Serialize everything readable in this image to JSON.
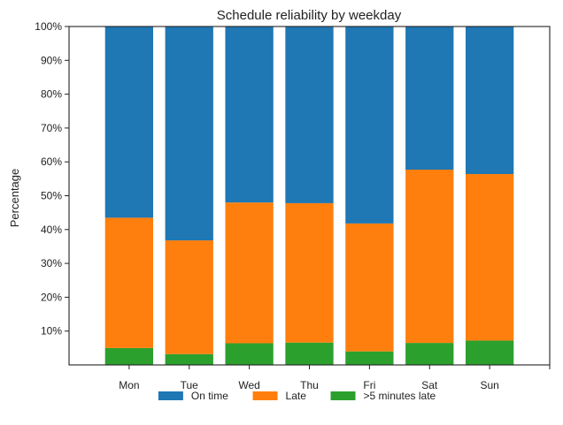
{
  "chart_data": {
    "type": "bar",
    "stacked": true,
    "title": "Schedule reliability by weekday",
    "xlabel": "",
    "ylabel": "Percentage",
    "ylim": [
      0,
      100
    ],
    "yticks": [
      "10%",
      "20%",
      "30%",
      "40%",
      "50%",
      "60%",
      "70%",
      "80%",
      "90%",
      "100%"
    ],
    "categories": [
      "Mon",
      "Tue",
      "Wed",
      "Thu",
      "Fri",
      "Sat",
      "Sun"
    ],
    "legend_position": "bottom-center",
    "series": [
      {
        "name": ">5 minutes late",
        "color": "#2ca02c",
        "values": [
          5.0,
          3.2,
          6.4,
          6.6,
          4.0,
          6.5,
          7.2
        ]
      },
      {
        "name": "Late",
        "color": "#ff7f0e",
        "values": [
          38.5,
          33.6,
          41.6,
          41.2,
          37.8,
          51.2,
          49.2
        ]
      },
      {
        "name": "On time",
        "color": "#1f77b4",
        "values": [
          56.5,
          63.2,
          52.0,
          52.2,
          58.2,
          42.3,
          43.6
        ]
      }
    ],
    "legend_order": [
      "On time",
      "Late",
      ">5 minutes late"
    ]
  }
}
